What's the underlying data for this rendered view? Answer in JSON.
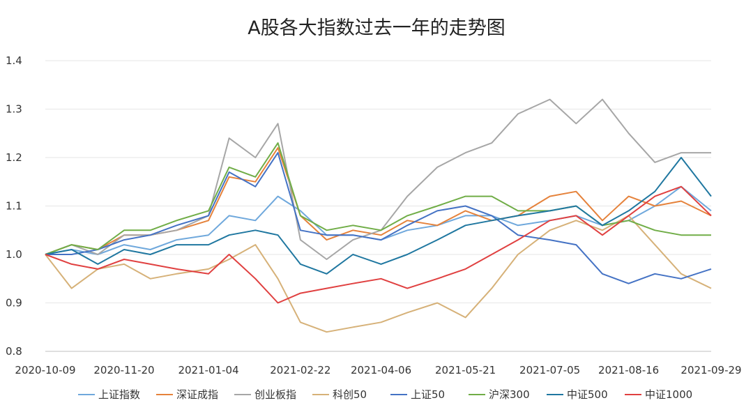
{
  "chart_data": {
    "type": "line",
    "title": "A股各大指数过去一年的走势图",
    "xlabel": "",
    "ylabel": "",
    "ylim": [
      0.8,
      1.4
    ],
    "yticks": [
      "0.8",
      "0.9",
      "1.0",
      "1.1",
      "1.2",
      "1.3",
      "1.4"
    ],
    "xtick_labels": [
      "2020-10-09",
      "2020-11-20",
      "2021-01-04",
      "2021-02-22",
      "2021-04-06",
      "2021-05-21",
      "2021-07-05",
      "2021-08-16",
      "2021-09-29"
    ],
    "grid": "horizontal",
    "legend": "bottom",
    "x_points": [
      "2020-10-09",
      "2020-10-23",
      "2020-11-06",
      "2020-11-20",
      "2020-12-04",
      "2020-12-18",
      "2021-01-04",
      "2021-01-15",
      "2021-01-29",
      "2021-02-10",
      "2021-02-22",
      "2021-03-08",
      "2021-03-22",
      "2021-04-06",
      "2021-04-20",
      "2021-05-06",
      "2021-05-21",
      "2021-06-04",
      "2021-06-18",
      "2021-07-05",
      "2021-07-19",
      "2021-08-02",
      "2021-08-16",
      "2021-08-30",
      "2021-09-13",
      "2021-09-29"
    ],
    "series": [
      {
        "name": "上证指数",
        "color": "#6FA8DC",
        "values": [
          1.0,
          1.01,
          1.0,
          1.02,
          1.01,
          1.03,
          1.04,
          1.08,
          1.07,
          1.12,
          1.09,
          1.04,
          1.04,
          1.03,
          1.05,
          1.06,
          1.08,
          1.08,
          1.06,
          1.07,
          1.08,
          1.06,
          1.07,
          1.1,
          1.14,
          1.09
        ]
      },
      {
        "name": "深证成指",
        "color": "#E5823B",
        "values": [
          1.0,
          1.02,
          1.01,
          1.04,
          1.04,
          1.05,
          1.07,
          1.16,
          1.15,
          1.22,
          1.08,
          1.03,
          1.05,
          1.04,
          1.07,
          1.06,
          1.09,
          1.07,
          1.08,
          1.12,
          1.13,
          1.07,
          1.12,
          1.1,
          1.11,
          1.08
        ]
      },
      {
        "name": "创业板指",
        "color": "#A6A6A6",
        "values": [
          1.0,
          1.02,
          1.0,
          1.04,
          1.04,
          1.05,
          1.08,
          1.24,
          1.2,
          1.27,
          1.03,
          0.99,
          1.03,
          1.05,
          1.12,
          1.18,
          1.21,
          1.23,
          1.29,
          1.32,
          1.27,
          1.32,
          1.25,
          1.19,
          1.21,
          1.21
        ]
      },
      {
        "name": "科创50",
        "color": "#D6B178",
        "values": [
          1.0,
          0.93,
          0.97,
          0.98,
          0.95,
          0.96,
          0.97,
          0.99,
          1.02,
          0.95,
          0.86,
          0.84,
          0.85,
          0.86,
          0.88,
          0.9,
          0.87,
          0.93,
          1.0,
          1.05,
          1.07,
          1.05,
          1.08,
          1.02,
          0.96,
          0.93
        ]
      },
      {
        "name": "上证50",
        "color": "#4472C4",
        "values": [
          1.0,
          1.0,
          1.01,
          1.03,
          1.04,
          1.06,
          1.08,
          1.17,
          1.14,
          1.21,
          1.05,
          1.04,
          1.04,
          1.03,
          1.06,
          1.09,
          1.1,
          1.08,
          1.04,
          1.03,
          1.02,
          0.96,
          0.94,
          0.96,
          0.95,
          0.97
        ]
      },
      {
        "name": "沪深300",
        "color": "#70AD47",
        "values": [
          1.0,
          1.02,
          1.01,
          1.05,
          1.05,
          1.07,
          1.09,
          1.18,
          1.16,
          1.23,
          1.08,
          1.05,
          1.06,
          1.05,
          1.08,
          1.1,
          1.12,
          1.12,
          1.09,
          1.09,
          1.1,
          1.06,
          1.07,
          1.05,
          1.04,
          1.04
        ]
      },
      {
        "name": "中证500",
        "color": "#1F77A0",
        "values": [
          1.0,
          1.01,
          0.98,
          1.01,
          1.0,
          1.02,
          1.02,
          1.04,
          1.05,
          1.04,
          0.98,
          0.96,
          1.0,
          0.98,
          1.0,
          1.03,
          1.06,
          1.07,
          1.08,
          1.09,
          1.1,
          1.06,
          1.09,
          1.13,
          1.2,
          1.12
        ]
      },
      {
        "name": "中证1000",
        "color": "#E04040",
        "values": [
          1.0,
          0.98,
          0.97,
          0.99,
          0.98,
          0.97,
          0.96,
          1.0,
          0.95,
          0.9,
          0.92,
          0.93,
          0.94,
          0.95,
          0.93,
          0.95,
          0.97,
          1.0,
          1.03,
          1.07,
          1.08,
          1.04,
          1.08,
          1.12,
          1.14,
          1.08
        ]
      }
    ]
  }
}
